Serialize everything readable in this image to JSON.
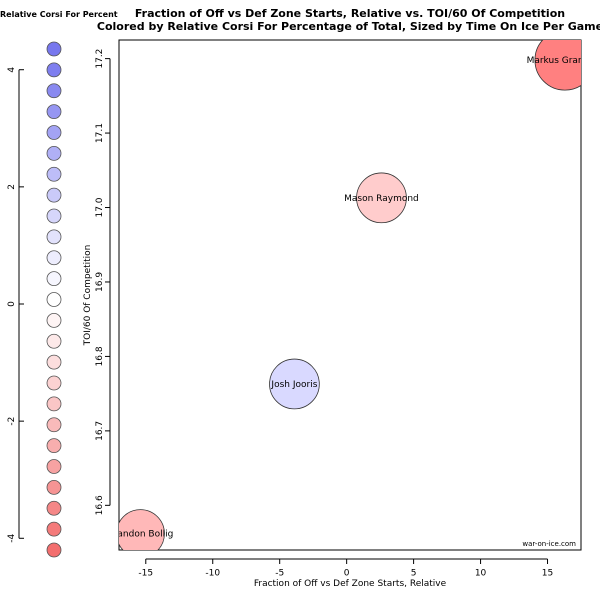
{
  "chart_data": {
    "type": "scatter",
    "title": "Fraction of Off vs Def Zone Starts, Relative vs. TOI/60 Of Competition",
    "subtitle": "Colored by Relative Corsi For Percentage of Total, Sized by Time On Ice Per Game",
    "xlabel": "Fraction of Off vs Def Zone Starts, Relative",
    "ylabel": "TOI/60 Of Competition",
    "xlim": [
      -17.0,
      17.5
    ],
    "ylim": [
      16.54,
      17.225
    ],
    "xticks": [
      -15,
      -10,
      -5,
      0,
      5,
      10,
      15
    ],
    "yticks": [
      16.6,
      16.7,
      16.8,
      16.9,
      17.0,
      17.1,
      17.2
    ],
    "grid": false,
    "credit": "war-on-ice.com",
    "points": [
      {
        "label": "Markus Granlund",
        "x": 16.3,
        "y": 17.198,
        "color": "#ff8080",
        "size_rel": 1.0
      },
      {
        "label": "Mason Raymond",
        "x": 2.6,
        "y": 17.013,
        "color": "#ffcccc",
        "size_rel": 0.83
      },
      {
        "label": "Josh Jooris",
        "x": -3.9,
        "y": 16.763,
        "color": "#d9d9ff",
        "size_rel": 0.83
      },
      {
        "label": "Brandon Bollig",
        "x": -15.4,
        "y": 16.562,
        "color": "#ffb8b8",
        "size_rel": 0.8
      }
    ],
    "legend": {
      "title": "Relative Corsi For Percent",
      "placement": "left",
      "range": [
        -4.2,
        4.2
      ],
      "ticks": [
        4,
        2,
        0,
        -2,
        -4
      ],
      "swatches": [
        "#7777ee",
        "#7e7eef",
        "#8989f0",
        "#9696f2",
        "#a3a3f4",
        "#b0b0f6",
        "#bdbdf8",
        "#cacaf9",
        "#d6d6fb",
        "#e2e2fc",
        "#ededfd",
        "#f6f6fe",
        "#ffffff",
        "#fef4f4",
        "#fde9e9",
        "#fcdede",
        "#fbd2d2",
        "#fac6c6",
        "#f9baba",
        "#f8aeae",
        "#f7a2a2",
        "#f69494",
        "#f58787",
        "#f47a7a",
        "#f36e6e"
      ]
    }
  }
}
